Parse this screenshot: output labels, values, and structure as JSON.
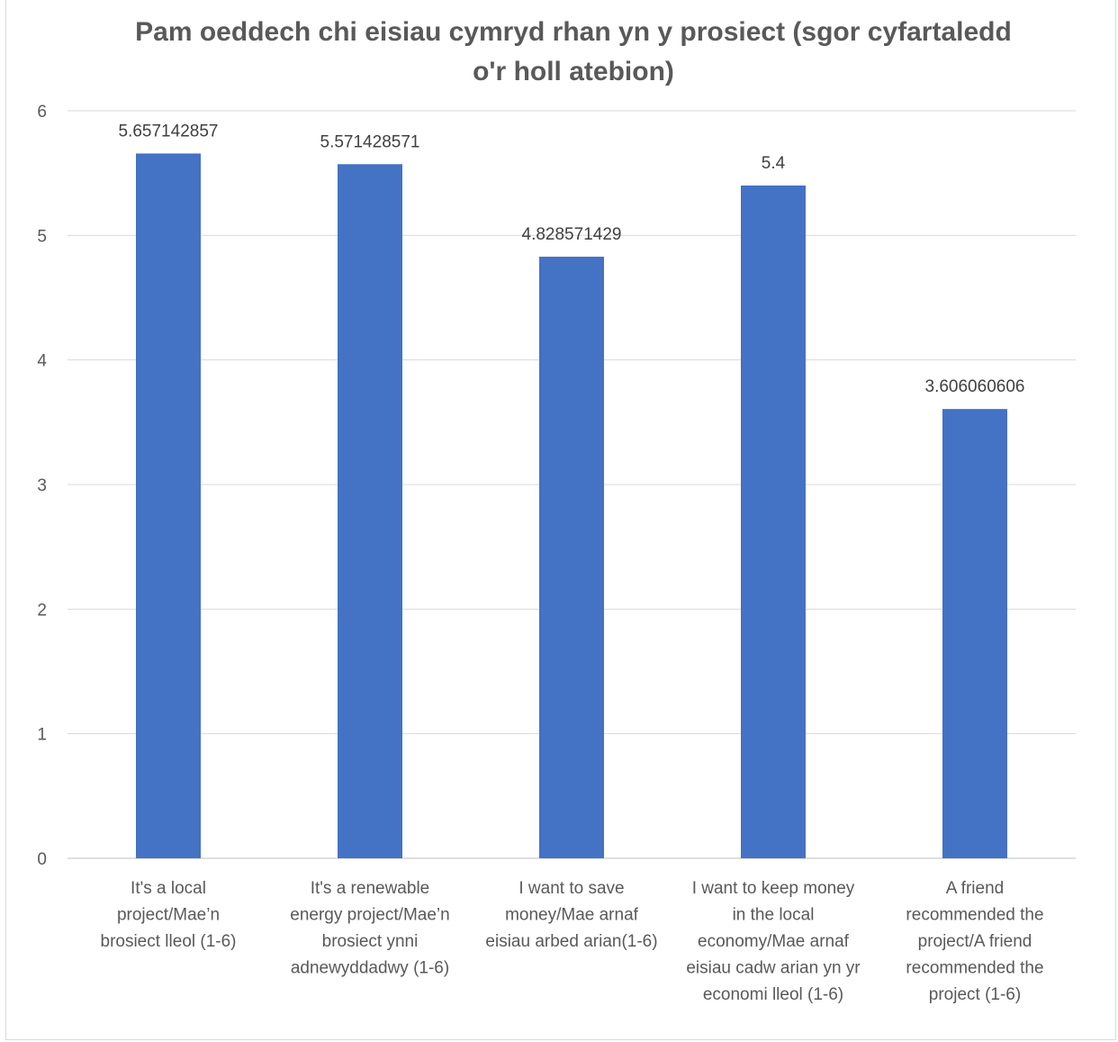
{
  "chart_data": {
    "type": "bar",
    "title": "Pam oeddech chi eisiau cymryd rhan yn y prosiect (sgor cyfartaledd o'r holl atebion)",
    "xlabel": "",
    "ylabel": "",
    "ylim": [
      0,
      6
    ],
    "yticks": [
      "0",
      "1",
      "2",
      "3",
      "4",
      "5",
      "6"
    ],
    "grid": true,
    "legend": "none",
    "bar_color": "#4472C4",
    "categories": [
      [
        "It's a local",
        "project/Mae’n",
        "brosiect lleol (1-6)"
      ],
      [
        "It's a renewable",
        "energy project/Mae’n",
        "brosiect ynni",
        "adnewyddadwy (1-6)"
      ],
      [
        "I want to save",
        "money/Mae arnaf",
        "eisiau arbed arian(1-6)"
      ],
      [
        "I want to keep money",
        "in the local",
        "economy/Mae arnaf",
        "eisiau cadw arian yn yr",
        "economi lleol (1-6)"
      ],
      [
        "A friend",
        "recommended the",
        "project/A friend",
        "recommended the",
        "project (1-6)"
      ]
    ],
    "values": [
      5.657142857,
      5.571428571,
      4.828571429,
      5.4,
      3.606060606
    ],
    "data_labels": [
      "5.657142857",
      "5.571428571",
      "4.828571429",
      "5.4",
      "3.606060606"
    ]
  }
}
